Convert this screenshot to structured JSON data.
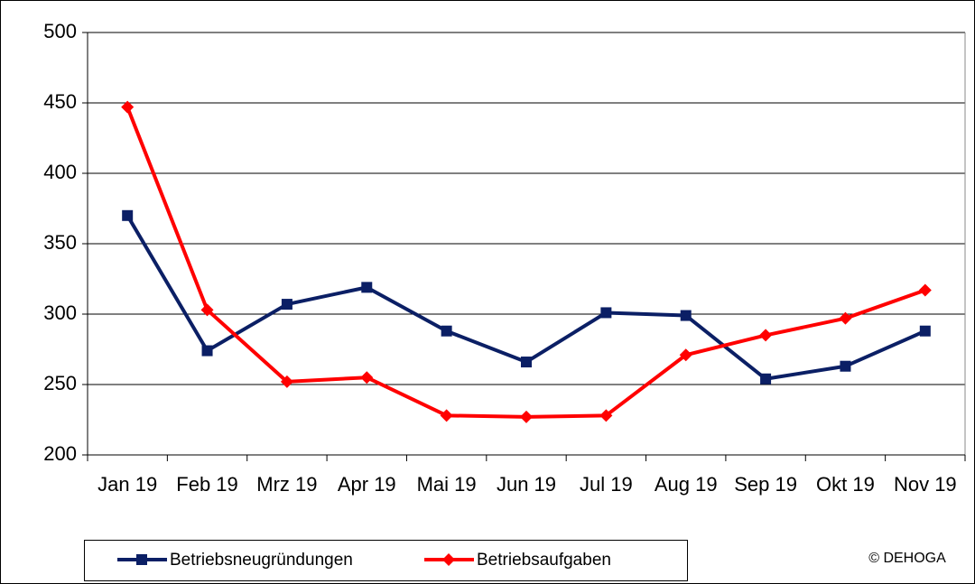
{
  "chart_data": {
    "type": "line",
    "categories": [
      "Jan 19",
      "Feb 19",
      "Mrz 19",
      "Apr 19",
      "Mai 19",
      "Jun 19",
      "Jul 19",
      "Aug 19",
      "Sep 19",
      "Okt 19",
      "Nov 19"
    ],
    "series": [
      {
        "name": "Betriebsneugründungen",
        "color": "#0b1f65",
        "marker": "square",
        "values": [
          370,
          274,
          307,
          319,
          288,
          266,
          301,
          299,
          254,
          263,
          288
        ]
      },
      {
        "name": "Betriebsaufgaben",
        "color": "#ff0000",
        "marker": "diamond",
        "values": [
          447,
          303,
          252,
          255,
          228,
          227,
          228,
          271,
          285,
          297,
          317
        ]
      }
    ],
    "ylim": [
      200,
      500
    ],
    "yticks": [
      200,
      250,
      300,
      350,
      400,
      450,
      500
    ],
    "grid": true,
    "legend": "bottom",
    "source": "© DEHOGA"
  }
}
